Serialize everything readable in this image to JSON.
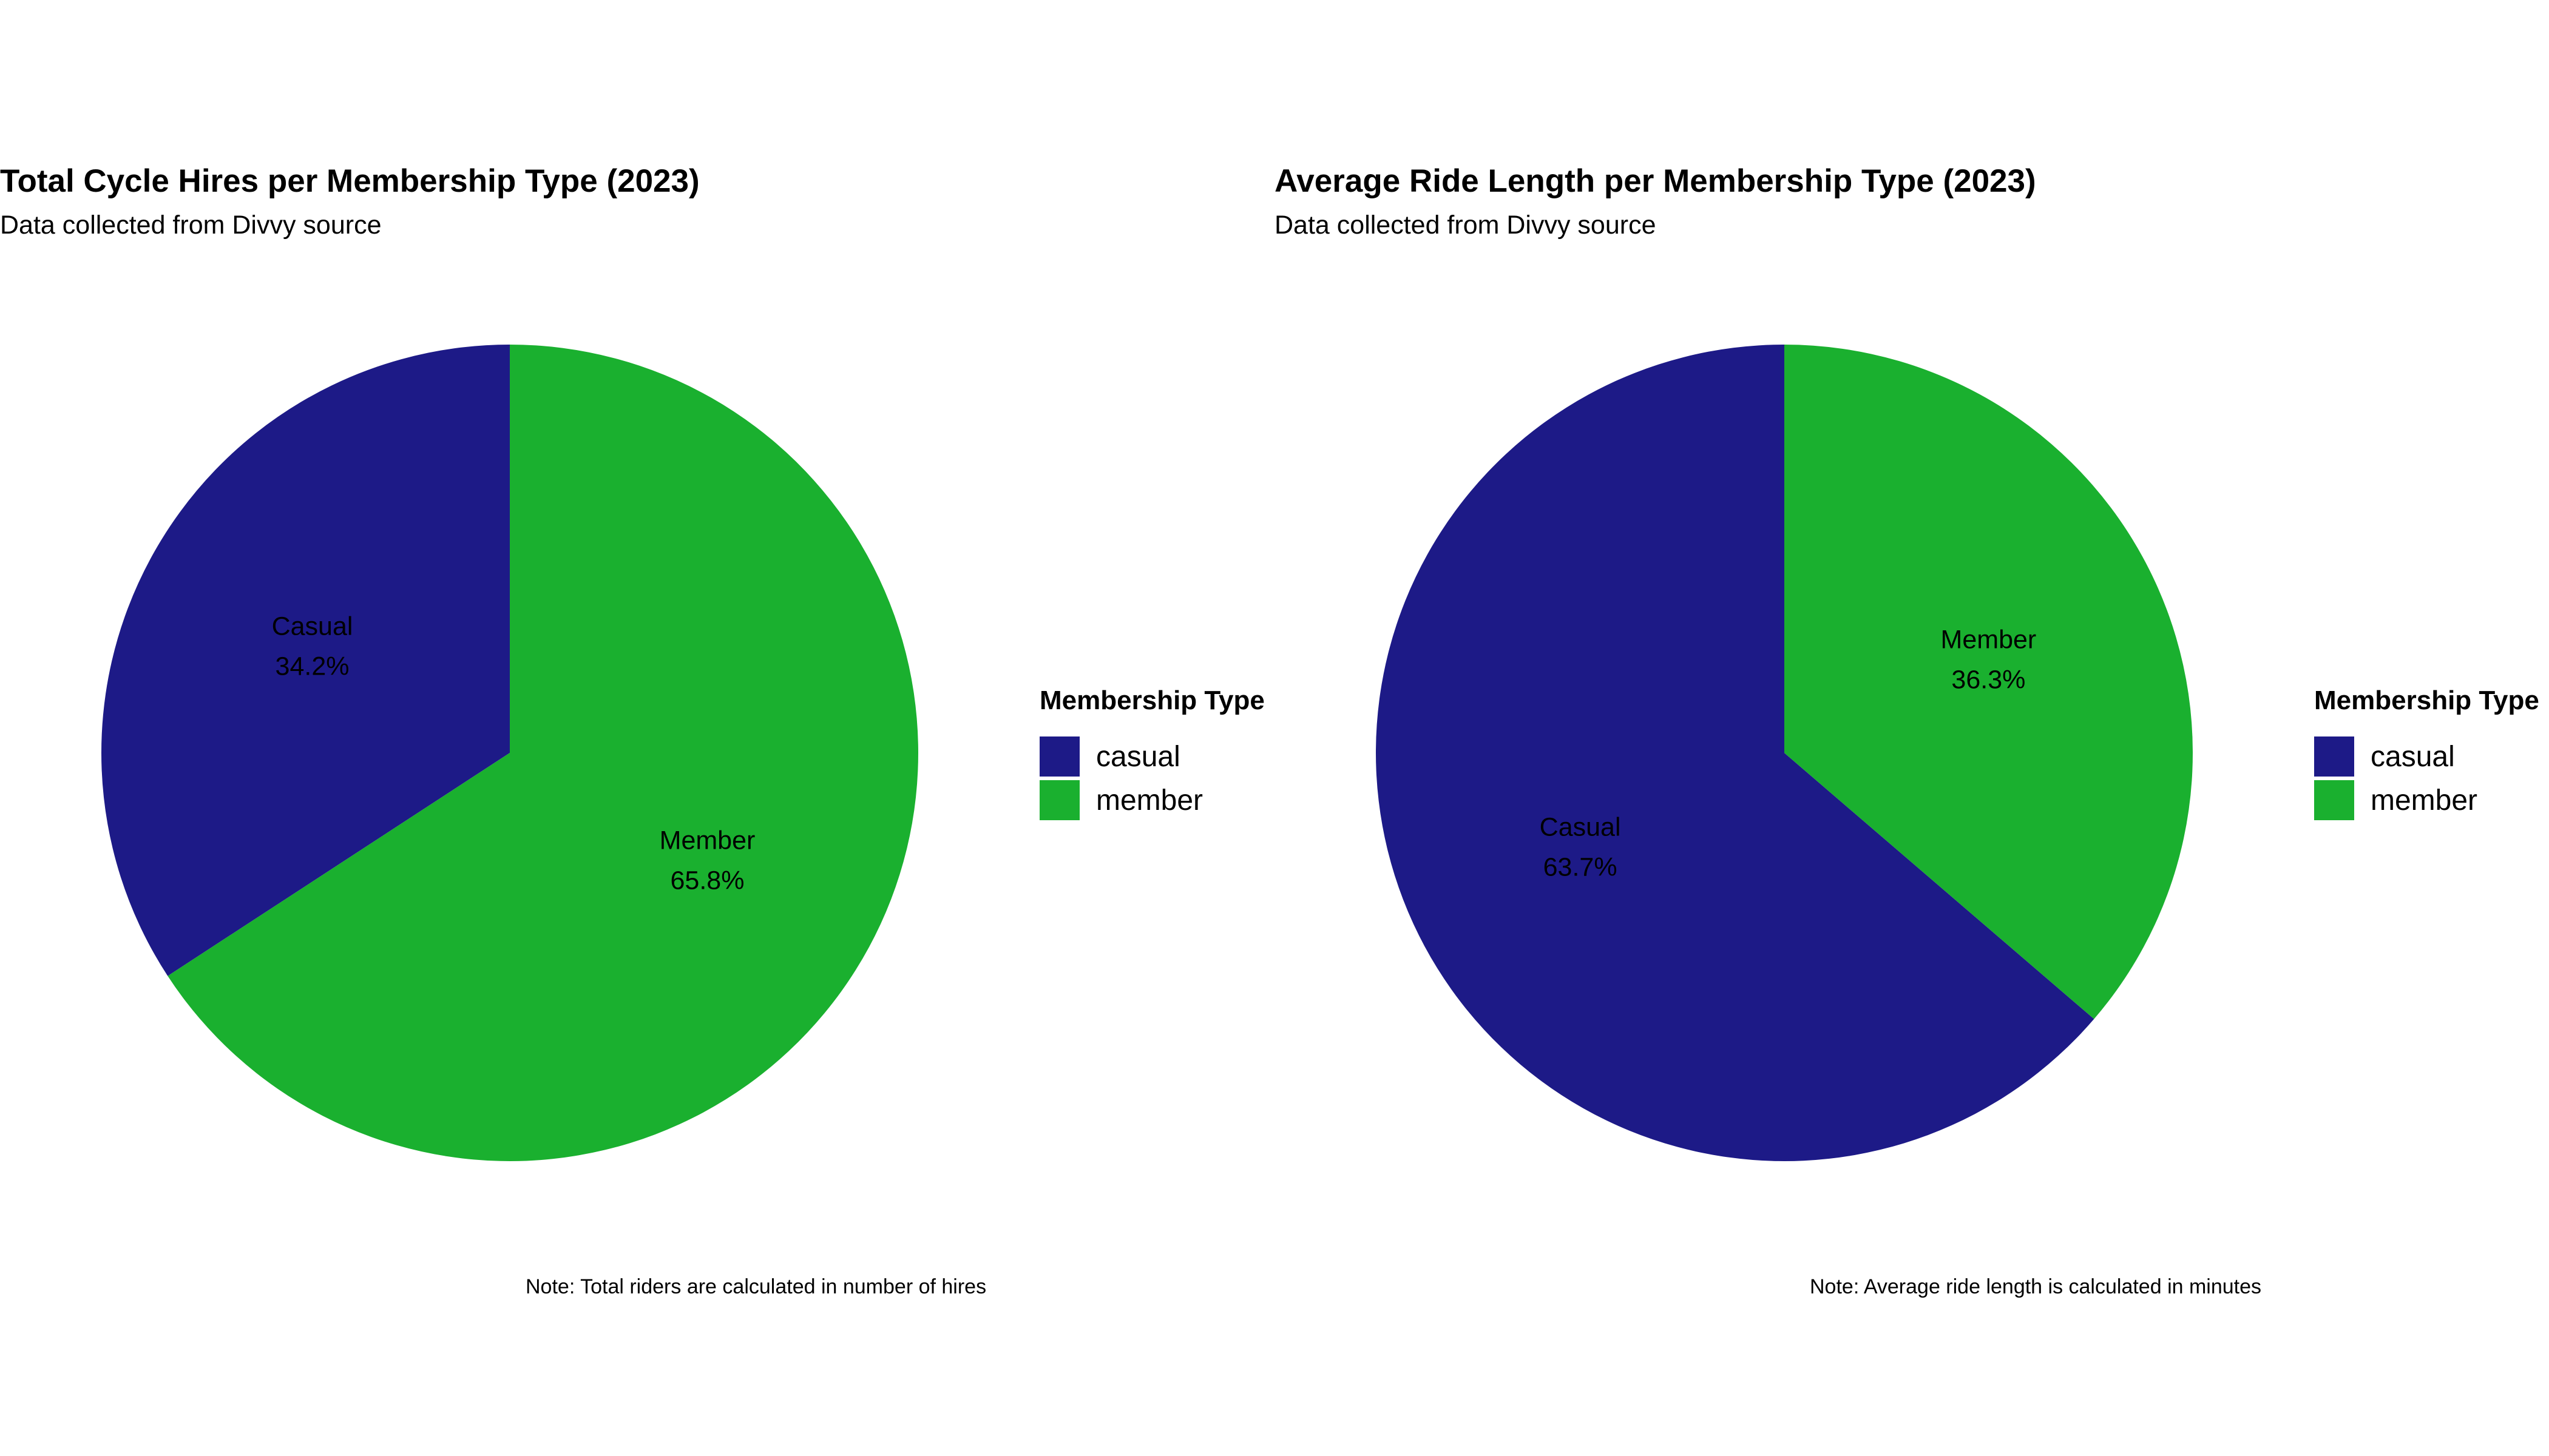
{
  "chart_data": [
    {
      "type": "pie",
      "title": "Total Cycle Hires per Membership Type (2023)",
      "subtitle": "Data collected from Divvy source",
      "note": "Note: Total riders are calculated in number of hires",
      "legend_title": "Membership Type",
      "legend_position": "right",
      "legend_entries": [
        "casual",
        "member"
      ],
      "slices": [
        {
          "name": "casual",
          "label": "Casual",
          "percent_label": "34.2%",
          "value": 34.2,
          "color": "#1D1A87"
        },
        {
          "name": "member",
          "label": "Member",
          "percent_label": "65.8%",
          "value": 65.8,
          "color": "#1AB02F"
        }
      ]
    },
    {
      "type": "pie",
      "title": "Average Ride Length per Membership Type (2023)",
      "subtitle": "Data collected from Divvy source",
      "note": "Note: Average ride length is calculated in minutes",
      "legend_title": "Membership Type",
      "legend_position": "right",
      "legend_entries": [
        "casual",
        "member"
      ],
      "slices": [
        {
          "name": "casual",
          "label": "Casual",
          "percent_label": "63.7%",
          "value": 63.7,
          "color": "#1D1A87"
        },
        {
          "name": "member",
          "label": "Member",
          "percent_label": "36.3%",
          "value": 36.3,
          "color": "#1AB02F"
        }
      ]
    }
  ]
}
